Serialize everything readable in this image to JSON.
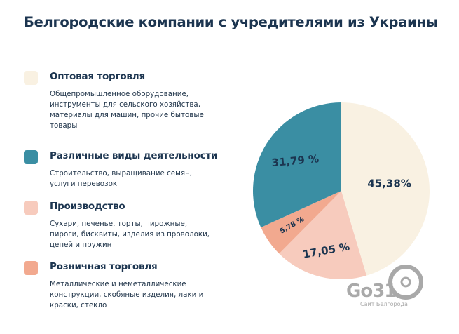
{
  "title": "Белгородские компании с учредителями из Украины",
  "legend": [
    {
      "name": "Оптовая торговля",
      "desc": "Общепромышленное оборудование, инструменты для сельского хозяйства,  материалы для машин, прочие бытовые товары",
      "color": "#f9f1e2"
    },
    {
      "name": "Различные виды деятельности",
      "desc": "Строительство, выращивание семян, услуги перевозок",
      "color": "#3a8ea3"
    },
    {
      "name": "Производство",
      "desc": "Сухари, печенье, торты, пирожные, пироги, бисквиты, изделия из проволоки, цепей и пружин",
      "color": "#f7cbbd"
    },
    {
      "name": "Розничная торговля",
      "desc": "Металлические и неметаллические конструкции, скобяные изделия, лаки и краски,  стекло",
      "color": "#f2a98f"
    }
  ],
  "chart_data": {
    "type": "pie",
    "title": "Белгородские компании с учредителями из Украины",
    "start": "top",
    "direction": "clockwise",
    "slices": [
      {
        "label": "Оптовая торговля",
        "value": 45.38,
        "text": "45,38%",
        "color": "#f9f1e2"
      },
      {
        "label": "Производство",
        "value": 17.05,
        "text": "17,05 %",
        "color": "#f7cbbd"
      },
      {
        "label": "Розничная торговля",
        "value": 5.78,
        "text": "5,78 %",
        "color": "#f2a98f"
      },
      {
        "label": "Различные виды деятельности",
        "value": 31.79,
        "text": "31,79 %",
        "color": "#3a8ea3"
      }
    ]
  },
  "watermark": {
    "main": "Go31",
    "sub": "Сайт Белгорода"
  }
}
